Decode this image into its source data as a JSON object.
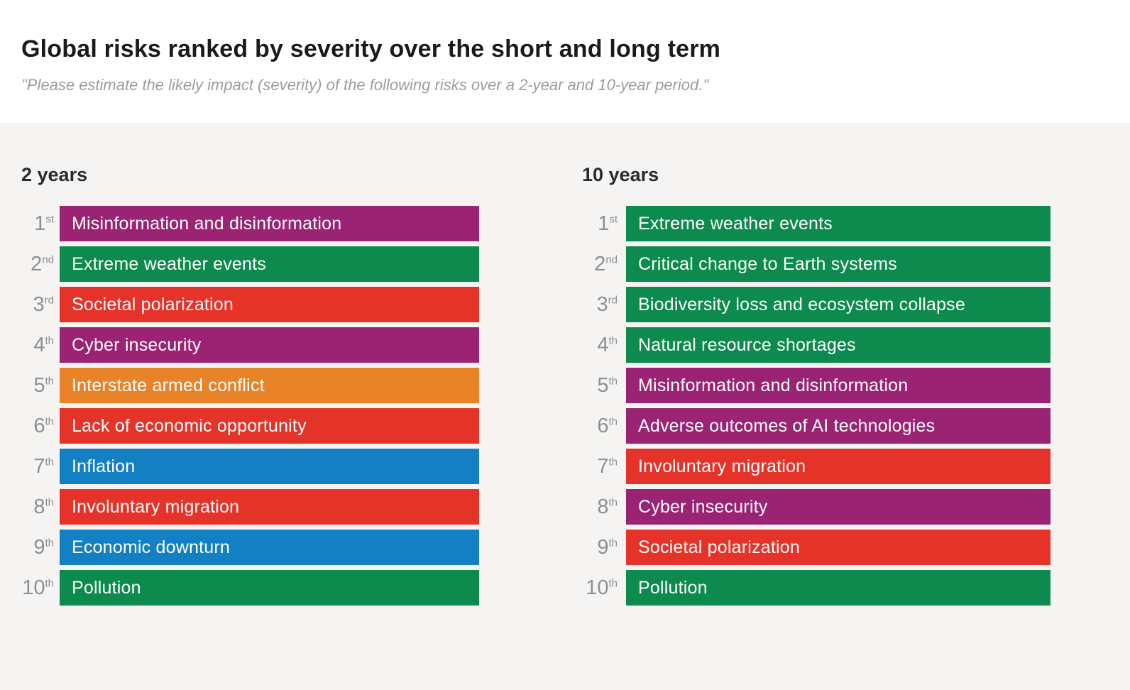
{
  "header": {
    "title": "Global risks ranked by severity over the short and long term",
    "subtitle": "\"Please estimate the likely impact (severity) of the following risks over a 2-year and 10-year period.\""
  },
  "palette": {
    "purple": "#9A2373",
    "green": "#0D8A4D",
    "red": "#E63329",
    "orange": "#E88328",
    "blue": "#1380C4",
    "chart_background": "#F5F4F3",
    "rank_label_gray": "#8F8F8F"
  },
  "chart_data": {
    "type": "bar",
    "subtype": "ranked-list",
    "title": "Global risks ranked by severity over the short and long term",
    "subtitle": "\"Please estimate the likely impact (severity) of the following risks over a 2-year and 10-year period.\"",
    "legend_position": "none",
    "grid": false,
    "note": "All bars are equal full length; color encodes risk category; order encodes severity rank.",
    "columns": [
      {
        "heading": "2 years",
        "items": [
          {
            "rank": "1",
            "suffix": "st",
            "label": "Misinformation and disinformation",
            "color": "#9A2373"
          },
          {
            "rank": "2",
            "suffix": "nd",
            "label": "Extreme weather events",
            "color": "#0D8A4D"
          },
          {
            "rank": "3",
            "suffix": "rd",
            "label": "Societal polarization",
            "color": "#E63329"
          },
          {
            "rank": "4",
            "suffix": "th",
            "label": "Cyber insecurity",
            "color": "#9A2373"
          },
          {
            "rank": "5",
            "suffix": "th",
            "label": "Interstate armed conflict",
            "color": "#E88328"
          },
          {
            "rank": "6",
            "suffix": "th",
            "label": "Lack of economic opportunity",
            "color": "#E63329"
          },
          {
            "rank": "7",
            "suffix": "th",
            "label": "Inflation",
            "color": "#1380C4"
          },
          {
            "rank": "8",
            "suffix": "th",
            "label": "Involuntary migration",
            "color": "#E63329"
          },
          {
            "rank": "9",
            "suffix": "th",
            "label": "Economic downturn",
            "color": "#1380C4"
          },
          {
            "rank": "10",
            "suffix": "th",
            "label": "Pollution",
            "color": "#0D8A4D"
          }
        ]
      },
      {
        "heading": "10 years",
        "items": [
          {
            "rank": "1",
            "suffix": "st",
            "label": "Extreme weather events",
            "color": "#0D8A4D"
          },
          {
            "rank": "2",
            "suffix": "nd",
            "label": "Critical change to Earth systems",
            "color": "#0D8A4D"
          },
          {
            "rank": "3",
            "suffix": "rd",
            "label": "Biodiversity loss and ecosystem collapse",
            "color": "#0D8A4D"
          },
          {
            "rank": "4",
            "suffix": "th",
            "label": "Natural resource shortages",
            "color": "#0D8A4D"
          },
          {
            "rank": "5",
            "suffix": "th",
            "label": "Misinformation and disinformation",
            "color": "#9A2373"
          },
          {
            "rank": "6",
            "suffix": "th",
            "label": "Adverse outcomes of AI technologies",
            "color": "#9A2373"
          },
          {
            "rank": "7",
            "suffix": "th",
            "label": "Involuntary migration",
            "color": "#E63329"
          },
          {
            "rank": "8",
            "suffix": "th",
            "label": "Cyber insecurity",
            "color": "#9A2373"
          },
          {
            "rank": "9",
            "suffix": "th",
            "label": "Societal polarization",
            "color": "#E63329"
          },
          {
            "rank": "10",
            "suffix": "th",
            "label": "Pollution",
            "color": "#0D8A4D"
          }
        ]
      }
    ]
  }
}
